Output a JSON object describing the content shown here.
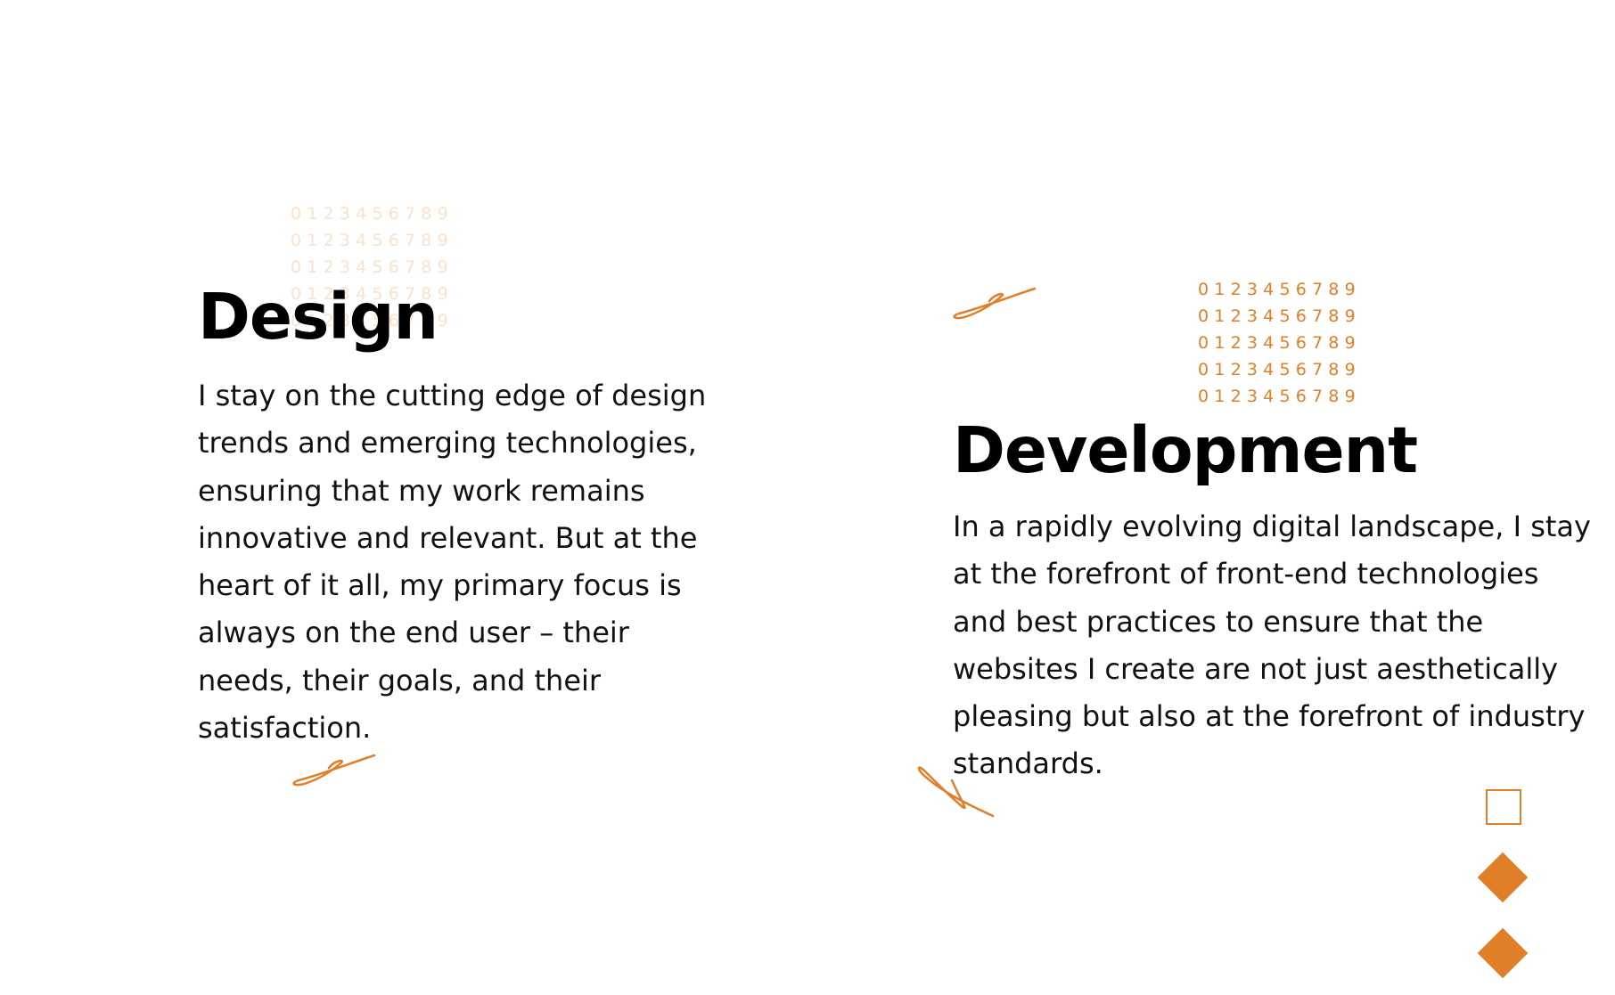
{
  "digit_row": "0123456789",
  "design": {
    "heading": "Design",
    "body": "I stay on the cutting edge of design trends and emerging technologies, ensuring that my work remains innovative and relevant. But at the heart of it all, my primary focus is always on the end user – their needs, their goals, and their satisfaction."
  },
  "development": {
    "heading": "Development",
    "body": "In a rapidly evolving digital landscape, I stay at the forefront of front-end technologies and best practices to ensure that the websites I create are not just aesthetically pleasing but also at the forefront of industry standards."
  },
  "colors": {
    "accent": "#e07f27",
    "accent_faded": "#fbe1cb",
    "text": "#000000",
    "background": "#ffffff"
  },
  "icons": {
    "squiggle": "squiggle-icon",
    "outline_square": "outline-square-icon",
    "diamond": "diamond-icon"
  }
}
